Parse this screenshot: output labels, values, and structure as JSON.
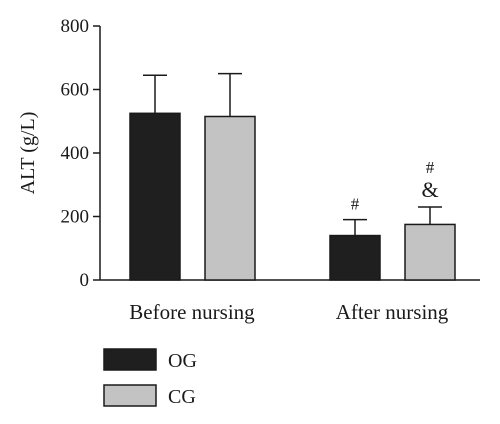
{
  "chart_data": {
    "type": "bar",
    "title": "",
    "xlabel": "",
    "ylabel": "ALT (g/L)",
    "ylim": [
      0,
      800
    ],
    "yticks": [
      0,
      200,
      400,
      600,
      800
    ],
    "grid": false,
    "legend_position": "bottom-left",
    "categories": [
      "Before nursing",
      "After nursing"
    ],
    "series": [
      {
        "name": "OG",
        "color": "#1f1f1f",
        "values": [
          525,
          140
        ],
        "error": [
          120,
          50
        ],
        "annotations": [
          "",
          "#"
        ]
      },
      {
        "name": "CG",
        "color": "#c3c3c3",
        "values": [
          515,
          175
        ],
        "error": [
          135,
          55
        ],
        "annotations": [
          "",
          "#\n&"
        ]
      }
    ]
  }
}
